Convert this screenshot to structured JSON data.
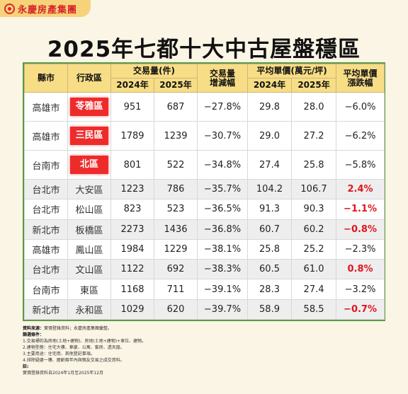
{
  "brand": {
    "name": "永慶房產集團"
  },
  "title": {
    "part1": "2025年",
    "part2": "七都十大中古屋盤穩區"
  },
  "table": {
    "header": {
      "city": "縣市",
      "district": "行政區",
      "volume_group": "交易量(件)",
      "year_2024": "2024年",
      "year_2025": "2025年",
      "volume_change_l1": "交易量",
      "volume_change_l2": "增減幅",
      "price_group": "平均單價(萬元/坪)",
      "price_change_l1": "平均單價",
      "price_change_l2": "漲跌幅"
    },
    "rows": [
      {
        "city": "高雄市",
        "district": "苓雅區",
        "highlight": true,
        "vol_2024": "951",
        "vol_2025": "687",
        "vol_change": "−27.8%",
        "price_2024": "29.8",
        "price_2025": "28.0",
        "price_change": "−6.0%",
        "change_style": "normal"
      },
      {
        "city": "高雄市",
        "district": "三民區",
        "highlight": true,
        "vol_2024": "1789",
        "vol_2025": "1239",
        "vol_change": "−30.7%",
        "price_2024": "29.0",
        "price_2025": "27.2",
        "price_change": "−6.2%",
        "change_style": "normal"
      },
      {
        "city": "台南市",
        "district": "北區",
        "highlight": true,
        "vol_2024": "801",
        "vol_2025": "522",
        "vol_change": "−34.8%",
        "price_2024": "27.4",
        "price_2025": "25.8",
        "price_change": "−5.8%",
        "change_style": "normal"
      },
      {
        "city": "台北市",
        "district": "大安區",
        "highlight": false,
        "vol_2024": "1223",
        "vol_2025": "786",
        "vol_change": "−35.7%",
        "price_2024": "104.2",
        "price_2025": "106.7",
        "price_change": "2.4%",
        "change_style": "up"
      },
      {
        "city": "台北市",
        "district": "松山區",
        "highlight": false,
        "vol_2024": "823",
        "vol_2025": "523",
        "vol_change": "−36.5%",
        "price_2024": "91.3",
        "price_2025": "90.3",
        "price_change": "−1.1%",
        "change_style": "down"
      },
      {
        "city": "新北市",
        "district": "板橋區",
        "highlight": false,
        "vol_2024": "2273",
        "vol_2025": "1436",
        "vol_change": "−36.8%",
        "price_2024": "60.7",
        "price_2025": "60.2",
        "price_change": "−0.8%",
        "change_style": "down"
      },
      {
        "city": "高雄市",
        "district": "鳳山區",
        "highlight": false,
        "vol_2024": "1984",
        "vol_2025": "1229",
        "vol_change": "−38.1%",
        "price_2024": "25.8",
        "price_2025": "25.2",
        "price_change": "−2.3%",
        "change_style": "normal"
      },
      {
        "city": "台北市",
        "district": "文山區",
        "highlight": false,
        "vol_2024": "1122",
        "vol_2025": "692",
        "vol_change": "−38.3%",
        "price_2024": "60.5",
        "price_2025": "61.0",
        "price_change": "0.8%",
        "change_style": "up"
      },
      {
        "city": "台南市",
        "district": "東區",
        "highlight": false,
        "vol_2024": "1168",
        "vol_2025": "711",
        "vol_change": "−39.1%",
        "price_2024": "28.3",
        "price_2025": "27.4",
        "price_change": "−3.2%",
        "change_style": "normal"
      },
      {
        "city": "新北市",
        "district": "永和區",
        "highlight": false,
        "vol_2024": "1029",
        "vol_2025": "620",
        "vol_change": "−39.7%",
        "price_2024": "58.9",
        "price_2025": "58.5",
        "price_change": "−0.7%",
        "change_style": "down"
      }
    ]
  },
  "notes": {
    "source_label": "資料來源：",
    "source_text": "實價登錄資料；永慶房產集團彙整。",
    "criteria_label": "篩選條件：",
    "criteria": [
      "1.交易標的為房地(土地+建物)、房地(土地+建物)+車位、建物。",
      "2.建物型態：住宅大樓、華廈、公寓、套房、透天厝。",
      "3.主要用途：住宅用、其他登記事項。",
      "4.排除疑慮一樓、屋齡兩年內與親友交易之成交資料。"
    ],
    "remark_label": "註:",
    "remark_text": "實價登錄資料自2024年1月至2025年12月"
  },
  "colors": {
    "accent_red": "#ee2b2b",
    "header_yellow": "#f7dd86",
    "frame_green": "#5a9a47",
    "page_bg": "#fbf5e6"
  }
}
